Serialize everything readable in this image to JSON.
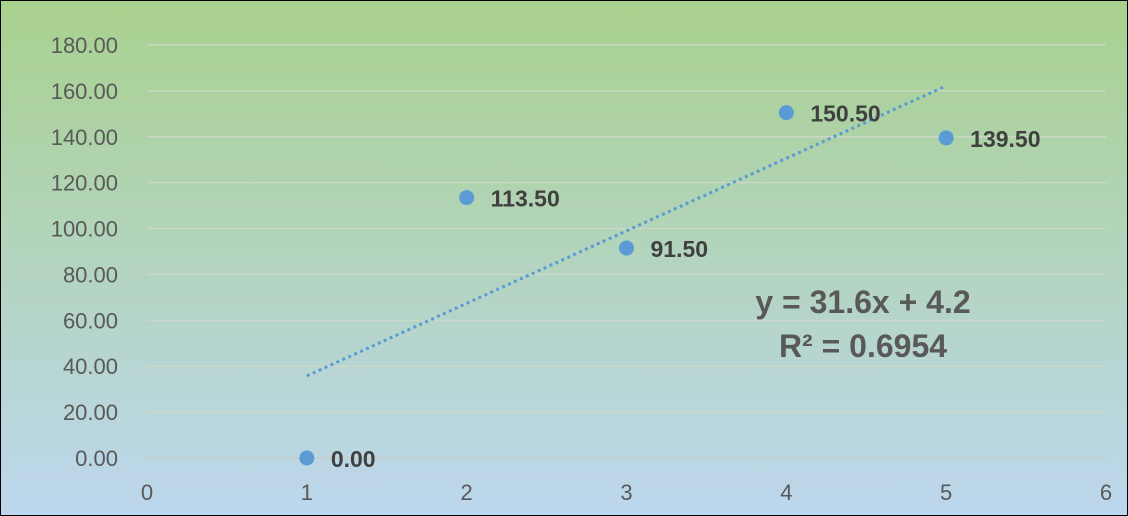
{
  "chart_data": {
    "type": "scatter",
    "xlim": [
      0,
      6
    ],
    "ylim": [
      0,
      180
    ],
    "x_ticks": [
      0,
      1,
      2,
      3,
      4,
      5,
      6
    ],
    "y_ticks": [
      0,
      20,
      40,
      60,
      80,
      100,
      120,
      140,
      160,
      180
    ],
    "y_tick_labels": [
      "0.00",
      "20.00",
      "40.00",
      "60.00",
      "80.00",
      "100.00",
      "120.00",
      "140.00",
      "160.00",
      "180.00"
    ],
    "x_tick_labels": [
      "0",
      "1",
      "2",
      "3",
      "4",
      "5",
      "6"
    ],
    "grid": "horizontal",
    "series": [
      {
        "x": [
          1,
          2,
          3,
          4,
          5
        ],
        "y": [
          0.0,
          113.5,
          91.5,
          150.5,
          139.5
        ],
        "labels": [
          "0.00",
          "113.50",
          "91.50",
          "150.50",
          "139.50"
        ],
        "color": "#5B9BD5"
      }
    ],
    "trendline": {
      "type": "linear",
      "slope": 31.6,
      "intercept": 4.2,
      "x_range": [
        1,
        5
      ],
      "style": "dotted",
      "color": "#5B9BD5",
      "equation_text": "y = 31.6x + 4.2",
      "r2_text": "R² = 0.6954"
    },
    "background_gradient": [
      "#A9D18E",
      "#BDD7EE"
    ]
  }
}
